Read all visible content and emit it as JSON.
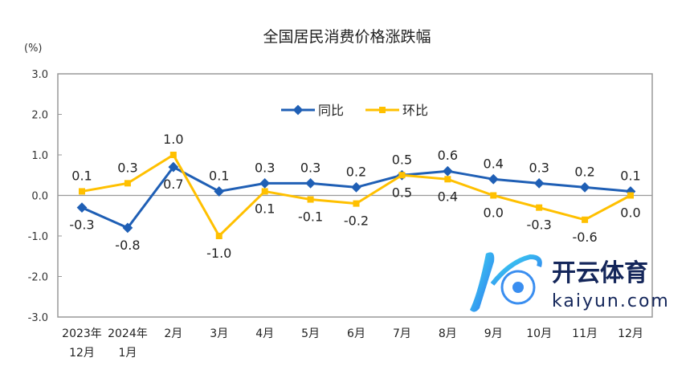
{
  "chart_data": {
    "type": "line",
    "title": "全国居民消费价格涨跌幅",
    "ylabel": "(%)",
    "ylim": [
      -3.0,
      3.0
    ],
    "yticks": [
      "3.0",
      "2.0",
      "1.0",
      "0.0",
      "-1.0",
      "-2.0",
      "-3.0"
    ],
    "categories": [
      [
        "2023年",
        "12月"
      ],
      [
        "2024年",
        "1月"
      ],
      [
        "2月"
      ],
      [
        "3月"
      ],
      [
        "4月"
      ],
      [
        "5月"
      ],
      [
        "6月"
      ],
      [
        "7月"
      ],
      [
        "8月"
      ],
      [
        "9月"
      ],
      [
        "10月"
      ],
      [
        "11月"
      ],
      [
        "12月"
      ]
    ],
    "legend_position": "top-center",
    "series": [
      {
        "name": "同比",
        "color": "#1f5fb5",
        "values": [
          -0.3,
          -0.8,
          0.7,
          0.1,
          0.3,
          0.3,
          0.2,
          0.5,
          0.6,
          0.4,
          0.3,
          0.2,
          0.1
        ],
        "labels": [
          "-0.3",
          "-0.8",
          "0.7",
          "0.1",
          "0.3",
          "0.3",
          "0.2",
          "0.5",
          "0.6",
          "0.4",
          "0.3",
          "0.2",
          "0.1"
        ]
      },
      {
        "name": "环比",
        "color": "#ffc000",
        "values": [
          0.1,
          0.3,
          1.0,
          -1.0,
          0.1,
          -0.1,
          -0.2,
          0.5,
          0.4,
          0.0,
          -0.3,
          -0.6,
          0.0
        ],
        "labels": [
          "0.1",
          "0.3",
          "1.0",
          "-1.0",
          "0.1",
          "-0.1",
          "-0.2",
          "0.5",
          "0.4",
          "0.0",
          "-0.3",
          "-0.6",
          "0.0"
        ]
      }
    ]
  },
  "watermark": {
    "cn": "开云体育",
    "en": "kaiyun.com"
  }
}
